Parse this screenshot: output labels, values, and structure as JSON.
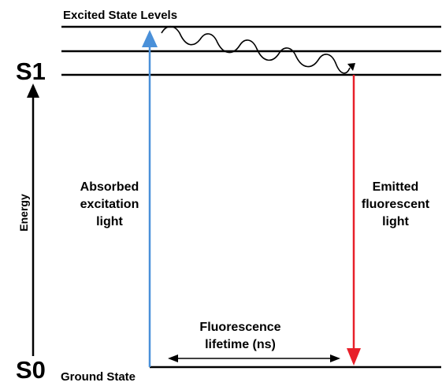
{
  "labels": {
    "excited_title": "Excited State Levels",
    "s1": "S1",
    "s0": "S0",
    "ground_state": "Ground State",
    "energy": "Energy",
    "absorbed": [
      "Absorbed",
      "excitation",
      "light"
    ],
    "emitted": [
      "Emitted",
      "fluorescent",
      "light"
    ],
    "lifetime": [
      "Fluorescence",
      "lifetime (ns)"
    ]
  },
  "colors": {
    "absorbed_arrow": "#4a90d9",
    "emitted_arrow": "#e8202a",
    "lines": "#000000"
  }
}
